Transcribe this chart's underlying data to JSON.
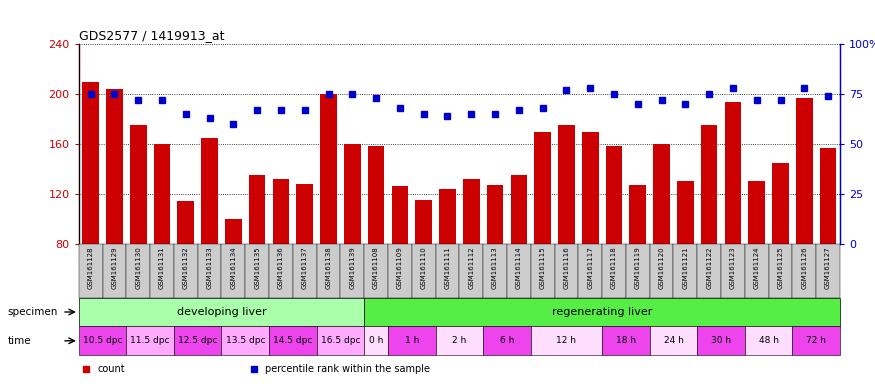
{
  "title": "GDS2577 / 1419913_at",
  "bar_color": "#cc0000",
  "dot_color": "#0000cc",
  "ylim_left": [
    80,
    240
  ],
  "ylim_right": [
    0,
    100
  ],
  "yticks_left": [
    80,
    120,
    160,
    200,
    240
  ],
  "yticks_right": [
    0,
    25,
    50,
    75,
    100
  ],
  "yticklabels_right": [
    "0",
    "25",
    "50",
    "75",
    "100%"
  ],
  "samples": [
    "GSM161128",
    "GSM161129",
    "GSM161130",
    "GSM161131",
    "GSM161132",
    "GSM161133",
    "GSM161134",
    "GSM161135",
    "GSM161136",
    "GSM161137",
    "GSM161138",
    "GSM161139",
    "GSM161108",
    "GSM161109",
    "GSM161110",
    "GSM161111",
    "GSM161112",
    "GSM161113",
    "GSM161114",
    "GSM161115",
    "GSM161116",
    "GSM161117",
    "GSM161118",
    "GSM161119",
    "GSM161120",
    "GSM161121",
    "GSM161122",
    "GSM161123",
    "GSM161124",
    "GSM161125",
    "GSM161126",
    "GSM161127"
  ],
  "counts": [
    210,
    204,
    175,
    160,
    114,
    165,
    100,
    135,
    132,
    128,
    200,
    160,
    158,
    126,
    115,
    124,
    132,
    127,
    135,
    170,
    175,
    170,
    158,
    127,
    160,
    130,
    175,
    194,
    130,
    145,
    197,
    157
  ],
  "percentiles": [
    75,
    75,
    72,
    72,
    65,
    63,
    60,
    67,
    67,
    67,
    75,
    75,
    73,
    68,
    65,
    64,
    65,
    65,
    67,
    68,
    77,
    78,
    75,
    70,
    72,
    70,
    75,
    78,
    72,
    72,
    78,
    74
  ],
  "specimen_groups": [
    {
      "label": "developing liver",
      "start": 0,
      "end": 12,
      "color": "#aaffaa"
    },
    {
      "label": "regenerating liver",
      "start": 12,
      "end": 32,
      "color": "#55ee44"
    }
  ],
  "time_groups": [
    {
      "label": "10.5 dpc",
      "start": 0,
      "end": 2,
      "color": "#ee44ee"
    },
    {
      "label": "11.5 dpc",
      "start": 2,
      "end": 4,
      "color": "#ffaaff"
    },
    {
      "label": "12.5 dpc",
      "start": 4,
      "end": 6,
      "color": "#ee44ee"
    },
    {
      "label": "13.5 dpc",
      "start": 6,
      "end": 8,
      "color": "#ffaaff"
    },
    {
      "label": "14.5 dpc",
      "start": 8,
      "end": 10,
      "color": "#ee44ee"
    },
    {
      "label": "16.5 dpc",
      "start": 10,
      "end": 12,
      "color": "#ffaaff"
    },
    {
      "label": "0 h",
      "start": 12,
      "end": 13,
      "color": "#ffddff"
    },
    {
      "label": "1 h",
      "start": 13,
      "end": 15,
      "color": "#ee44ee"
    },
    {
      "label": "2 h",
      "start": 15,
      "end": 17,
      "color": "#ffddff"
    },
    {
      "label": "6 h",
      "start": 17,
      "end": 19,
      "color": "#ee44ee"
    },
    {
      "label": "12 h",
      "start": 19,
      "end": 22,
      "color": "#ffddff"
    },
    {
      "label": "18 h",
      "start": 22,
      "end": 24,
      "color": "#ee44ee"
    },
    {
      "label": "24 h",
      "start": 24,
      "end": 26,
      "color": "#ffddff"
    },
    {
      "label": "30 h",
      "start": 26,
      "end": 28,
      "color": "#ee44ee"
    },
    {
      "label": "48 h",
      "start": 28,
      "end": 30,
      "color": "#ffddff"
    },
    {
      "label": "72 h",
      "start": 30,
      "end": 32,
      "color": "#ee44ee"
    }
  ],
  "legend_items": [
    {
      "label": "count",
      "color": "#cc0000"
    },
    {
      "label": "percentile rank within the sample",
      "color": "#0000cc"
    }
  ],
  "tick_bg_color": "#cccccc",
  "plot_bg_color": "#ffffff"
}
